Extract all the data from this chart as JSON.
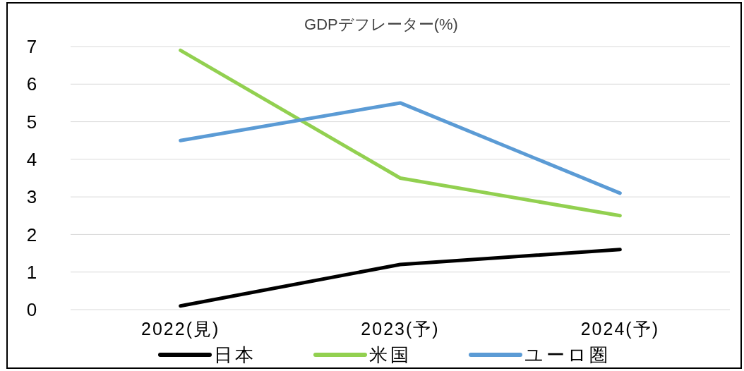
{
  "chart_data": {
    "type": "line",
    "title": "GDPデフレーター(%)",
    "categories": [
      "2022(見)",
      "2023(予)",
      "2024(予)"
    ],
    "series": [
      {
        "name": "日本",
        "color": "#000000",
        "values": [
          0.1,
          1.2,
          1.6
        ]
      },
      {
        "name": "米国",
        "color": "#92d050",
        "values": [
          6.9,
          3.5,
          2.5
        ]
      },
      {
        "name": "ユーロ圏",
        "color": "#5b9bd5",
        "values": [
          4.5,
          5.5,
          3.1
        ]
      }
    ],
    "ylim": [
      0,
      7
    ],
    "yticks": [
      0,
      1,
      2,
      3,
      4,
      5,
      6,
      7
    ],
    "grid": "y",
    "legend": "bottom",
    "marker": "none",
    "line_style": "solid"
  }
}
